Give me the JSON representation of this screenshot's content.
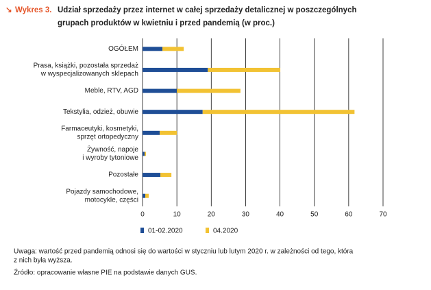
{
  "chart_data": {
    "type": "stacked_barh",
    "label": "Wykres 3.",
    "title": [
      "Udział sprzedaży przez internet w całej sprzedaży detalicznej w poszczególnych",
      "grupach produktów w kwietniu i przed pandemią (w proc.)"
    ],
    "categories": [
      [
        "OGÓŁEM"
      ],
      [
        "Prasa, książki, pozostała sprzedaż",
        "w wyspecjalizowanych sklepach"
      ],
      [
        "Meble, RTV, AGD"
      ],
      [
        "Tekstylia, odzież, obuwie"
      ],
      [
        "Farmaceutyki, kosmetyki,",
        "sprzęt ortopedyczny"
      ],
      [
        "Żywność, napoje",
        "i wyroby tytoniowe"
      ],
      [
        "Pozostałe"
      ],
      [
        "Pojazdy samochodowe,",
        "motocykle, części"
      ]
    ],
    "series": [
      {
        "name": "01-02.2020",
        "color": "#1f4e96",
        "values": [
          5.8,
          19.0,
          10.0,
          17.5,
          5.0,
          0.6,
          5.2,
          0.8
        ]
      },
      {
        "name": "04.2020",
        "color": "#f2c233",
        "values": [
          6.2,
          21.1,
          18.5,
          44.2,
          5.0,
          0.4,
          3.2,
          1.0
        ]
      }
    ],
    "xlim": [
      0,
      70
    ],
    "xticks": [
      0,
      10,
      20,
      30,
      40,
      50,
      60,
      70
    ],
    "grid": true,
    "note": [
      "Uwaga: wartość przed pandemią odnosi się do wartości w styczniu lub lutym 2020 r. w zależności od tego, która",
      "z nich była wyższa."
    ],
    "source": "Źródło: opracowanie własne PIE na podstawie danych GUS."
  }
}
